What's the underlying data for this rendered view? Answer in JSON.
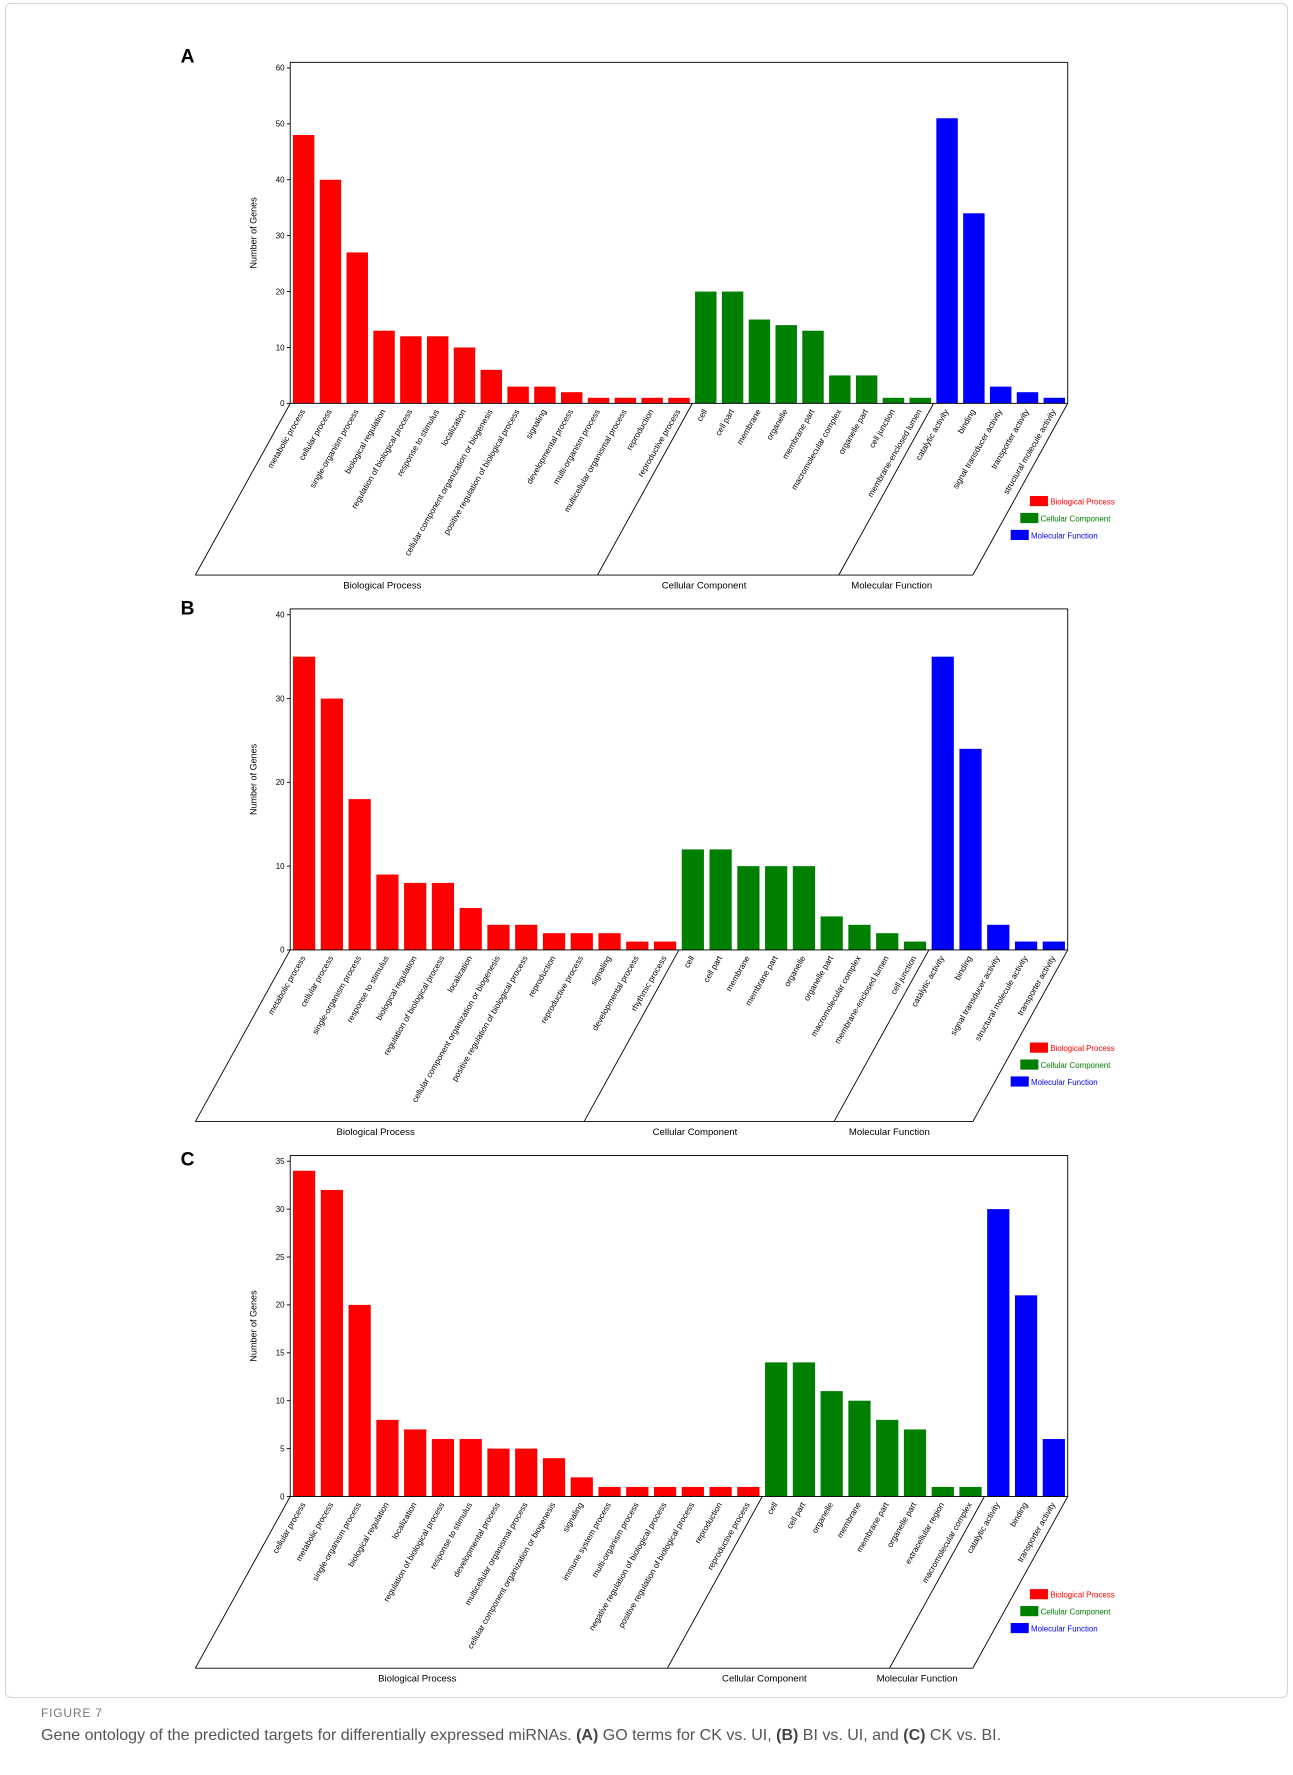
{
  "figure": {
    "label": "FIGURE 7",
    "caption": [
      "Gene ontology of the predicted targets for differentially expressed miRNAs. ",
      "(A)",
      " GO terms for CK vs. UI, ",
      "(B)",
      " BI vs. UI, and ",
      "(C)",
      " CK vs. BI."
    ]
  },
  "chart_data": [
    {
      "panel": "A",
      "type": "bar",
      "ylabel": "Number of Genes",
      "ylim": [
        0,
        61
      ],
      "yticks": [
        0,
        10,
        20,
        30,
        40,
        50,
        60
      ],
      "grid": false,
      "legend_position": "bottom-right",
      "series": [
        {
          "name": "Biological Process",
          "color": "#ff0000",
          "categories": [
            "metabolic process",
            "cellular process",
            "single-organism process",
            "biological regulation",
            "regulation of biological process",
            "response to stimulus",
            "localization",
            "cellular component organization or biogenesis",
            "positive regulation of biological process",
            "signaling",
            "developmental process",
            "multi-organism process",
            "multicellular organismal process",
            "reproduction",
            "reproductive process"
          ],
          "values": [
            48,
            40,
            27,
            13,
            12,
            12,
            10,
            6,
            3,
            3,
            2,
            1,
            1,
            1,
            1
          ]
        },
        {
          "name": "Cellular Component",
          "color": "#008000",
          "categories": [
            "cell",
            "cell part",
            "membrane",
            "organelle",
            "membrane part",
            "macromolecular complex",
            "organelle part",
            "cell junction",
            "membrane-enclosed lumen"
          ],
          "values": [
            20,
            20,
            15,
            14,
            13,
            5,
            5,
            1,
            1
          ]
        },
        {
          "name": "Molecular Function",
          "color": "#0000ff",
          "categories": [
            "catalytic activity",
            "binding",
            "signal transducer activity",
            "transporter activity",
            "structural molecule activity"
          ],
          "values": [
            51,
            34,
            3,
            2,
            1
          ]
        }
      ]
    },
    {
      "panel": "B",
      "type": "bar",
      "ylabel": "Number of Genes",
      "ylim": [
        0,
        40.7
      ],
      "yticks": [
        0,
        10,
        20,
        30,
        40
      ],
      "grid": false,
      "legend_position": "bottom-right",
      "series": [
        {
          "name": "Biological Process",
          "color": "#ff0000",
          "categories": [
            "metabolic process",
            "cellular process",
            "single-organism process",
            "response to stimulus",
            "biological regulation",
            "regulation of biological process",
            "localization",
            "cellular component organization or biogenesis",
            "positive regulation of biological process",
            "reproduction",
            "reproductive process",
            "signaling",
            "developmental process",
            "rhythmic process"
          ],
          "values": [
            35,
            30,
            18,
            9,
            8,
            8,
            5,
            3,
            3,
            2,
            2,
            2,
            1,
            1
          ]
        },
        {
          "name": "Cellular Component",
          "color": "#008000",
          "categories": [
            "cell",
            "cell part",
            "membrane",
            "membrane part",
            "organelle",
            "organelle part",
            "macromolecular complex",
            "membrane-enclosed lumen",
            "cell junction"
          ],
          "values": [
            12,
            12,
            10,
            10,
            10,
            4,
            3,
            2,
            1
          ]
        },
        {
          "name": "Molecular Function",
          "color": "#0000ff",
          "categories": [
            "catalytic activity",
            "binding",
            "signal transducer activity",
            "structural molecule activity",
            "transporter activity"
          ],
          "values": [
            35,
            24,
            3,
            1,
            1
          ]
        }
      ]
    },
    {
      "panel": "C",
      "type": "bar",
      "ylabel": "Number of Genes",
      "ylim": [
        0,
        35.6
      ],
      "yticks": [
        0,
        5,
        10,
        15,
        20,
        25,
        30,
        35
      ],
      "grid": false,
      "legend_position": "bottom-right",
      "series": [
        {
          "name": "Biological Process",
          "color": "#ff0000",
          "categories": [
            "cellular process",
            "metabolic process",
            "single-organism process",
            "biological regulation",
            "localization",
            "regulation of biological process",
            "response to stimulus",
            "developmental process",
            "multicellular organismal process",
            "cellular component organization or biogenesis",
            "signaling",
            "immune system process",
            "multi-organism process",
            "negative regulation of biological process",
            "positive regulation of biological process",
            "reproduction",
            "reproductive process"
          ],
          "values": [
            34,
            32,
            20,
            8,
            7,
            6,
            6,
            5,
            5,
            4,
            2,
            1,
            1,
            1,
            1,
            1,
            1
          ]
        },
        {
          "name": "Cellular Component",
          "color": "#008000",
          "categories": [
            "cell",
            "cell part",
            "organelle",
            "membrane",
            "membrane part",
            "organelle part",
            "extracellular region",
            "macromolecular complex"
          ],
          "values": [
            14,
            14,
            11,
            10,
            8,
            7,
            1,
            1
          ]
        },
        {
          "name": "Molecular Function",
          "color": "#0000ff",
          "categories": [
            "catalytic activity",
            "binding",
            "transporter activity"
          ],
          "values": [
            30,
            21,
            6
          ]
        }
      ]
    }
  ]
}
